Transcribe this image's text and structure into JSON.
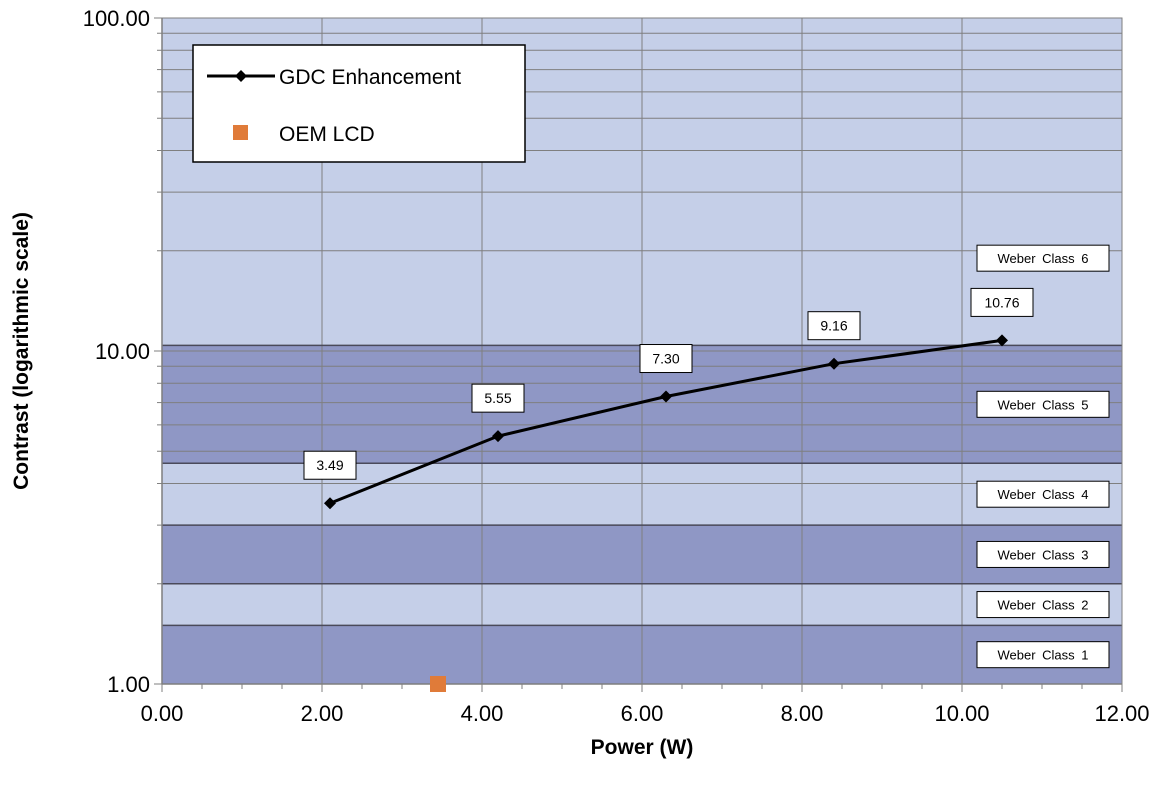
{
  "chart_data": {
    "type": "line",
    "xlabel": "Power (W)",
    "ylabel": "Contrast (logarithmic scale)",
    "xlim": [
      0,
      12
    ],
    "ylim": [
      1,
      100
    ],
    "y_scale": "log",
    "grid": true,
    "x_ticks": [
      "0.00",
      "2.00",
      "4.00",
      "6.00",
      "8.00",
      "10.00",
      "12.00"
    ],
    "y_ticks": [
      "1.00",
      "10.00",
      "100.00"
    ],
    "legend_position": "top-left",
    "series": [
      {
        "name": "GDC Enhancement",
        "marker": "diamond",
        "color": "#000000",
        "x": [
          2.1,
          4.2,
          6.3,
          8.4,
          10.5
        ],
        "y": [
          3.49,
          5.55,
          7.3,
          9.16,
          10.76
        ],
        "labels": [
          "3.49",
          "5.55",
          "7.30",
          "9.16",
          "10.76"
        ]
      },
      {
        "name": "OEM LCD",
        "marker": "square",
        "color": "#e07b39",
        "x": [
          3.45
        ],
        "y": [
          1.0
        ]
      }
    ],
    "bands": [
      {
        "label": "Weber Class 1",
        "from": 1.0,
        "to": 1.5,
        "color": "#8f97c5"
      },
      {
        "label": "Weber Class 2",
        "from": 1.5,
        "to": 2.0,
        "color": "#c5cfe8"
      },
      {
        "label": "Weber Class 3",
        "from": 2.0,
        "to": 3.0,
        "color": "#8f97c5"
      },
      {
        "label": "Weber Class 4",
        "from": 3.0,
        "to": 4.6,
        "color": "#c5cfe8"
      },
      {
        "label": "Weber Class 5",
        "from": 4.6,
        "to": 10.4,
        "color": "#8f97c5"
      },
      {
        "label": "Weber Class 6",
        "from": 10.4,
        "to": 100.0,
        "color": "#c5cfe8"
      }
    ]
  }
}
